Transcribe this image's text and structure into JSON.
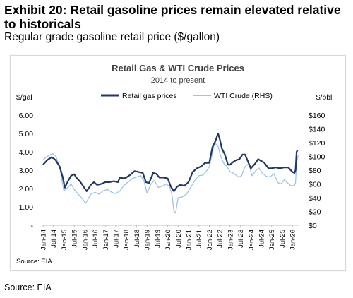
{
  "exhibit": {
    "title": "Exhibit 20: Retail gasoline prices remain elevated relative to historicals",
    "subtitle": "Regular grade gasoline retail price ($/gallon)",
    "source": "Source: EIA"
  },
  "chart_data": {
    "type": "line",
    "title": "Retail Gas & WTI Crude Prices",
    "subtitle": "2014 to present",
    "ylabel": "$/gal",
    "y2label": "$/bbl",
    "ylim": [
      0,
      6
    ],
    "y2lim": [
      0,
      160
    ],
    "yticks": [
      "-",
      "1.00",
      "2.00",
      "3.00",
      "4.00",
      "5.00",
      "6.00"
    ],
    "y2ticks": [
      "$0",
      "$20",
      "$40",
      "$60",
      "$80",
      "$100",
      "$120",
      "$140",
      "$160"
    ],
    "xticks": [
      "Jan-14",
      "Jul-14",
      "Jan-15",
      "Jul-15",
      "Jan-16",
      "Jul-16",
      "Jan-17",
      "Jul-17",
      "Jan-18",
      "Jul-18",
      "Jan-19",
      "Jul-19",
      "Jan-20",
      "Jul-20",
      "Jan-21",
      "Jul-21",
      "Jan-22",
      "Jul-22",
      "Jan-23",
      "Jul-23",
      "Jan-24",
      "Jul-24",
      "Jan-25",
      "Jul-25",
      "Jan-26"
    ],
    "xlim": [
      2014.0,
      2026.3
    ],
    "grid": false,
    "legend": "top-center",
    "source": "Source: EIA",
    "series": [
      {
        "name": "Retail gas prices",
        "axis": "left",
        "color": "#1f3864",
        "x": [
          2014.0,
          2014.2,
          2014.4,
          2014.5,
          2014.6,
          2014.8,
          2014.95,
          2015.05,
          2015.2,
          2015.35,
          2015.5,
          2015.6,
          2015.8,
          2015.95,
          2016.1,
          2016.3,
          2016.45,
          2016.6,
          2016.8,
          2017.0,
          2017.2,
          2017.4,
          2017.6,
          2017.7,
          2017.9,
          2018.0,
          2018.2,
          2018.4,
          2018.6,
          2018.8,
          2018.95,
          2019.1,
          2019.3,
          2019.45,
          2019.6,
          2019.8,
          2020.0,
          2020.15,
          2020.3,
          2020.45,
          2020.6,
          2020.8,
          2021.0,
          2021.2,
          2021.4,
          2021.6,
          2021.8,
          2022.0,
          2022.15,
          2022.3,
          2022.42,
          2022.5,
          2022.6,
          2022.75,
          2022.9,
          2023.0,
          2023.15,
          2023.3,
          2023.45,
          2023.6,
          2023.72,
          2023.85,
          2024.0,
          2024.2,
          2024.35,
          2024.5,
          2024.65,
          2024.85,
          2025.0,
          2025.2,
          2025.4,
          2025.6,
          2025.8,
          2026.0,
          2026.1,
          2026.15,
          2026.2,
          2026.25
        ],
        "values": [
          3.3,
          3.55,
          3.7,
          3.65,
          3.55,
          3.2,
          2.6,
          2.05,
          2.4,
          2.7,
          2.78,
          2.6,
          2.35,
          2.1,
          1.85,
          2.2,
          2.35,
          2.2,
          2.25,
          2.35,
          2.35,
          2.4,
          2.35,
          2.6,
          2.55,
          2.6,
          2.75,
          2.95,
          2.9,
          2.85,
          2.35,
          2.3,
          2.85,
          2.8,
          2.6,
          2.6,
          2.55,
          2.1,
          1.85,
          2.1,
          2.2,
          2.15,
          2.35,
          2.9,
          3.1,
          3.2,
          3.4,
          3.4,
          4.25,
          4.6,
          5.0,
          4.7,
          4.2,
          3.85,
          3.3,
          3.3,
          3.45,
          3.55,
          3.6,
          3.85,
          3.85,
          3.5,
          3.1,
          3.35,
          3.6,
          3.5,
          3.4,
          3.1,
          3.1,
          3.15,
          3.1,
          3.15,
          3.15,
          2.9,
          2.85,
          3.0,
          4.0,
          4.1
        ]
      },
      {
        "name": "WTI Crude (RHS)",
        "axis": "right",
        "color": "#9dc3e6",
        "x": [
          2014.0,
          2014.2,
          2014.45,
          2014.6,
          2014.8,
          2015.0,
          2015.2,
          2015.35,
          2015.5,
          2015.7,
          2015.9,
          2016.05,
          2016.3,
          2016.5,
          2016.7,
          2016.9,
          2017.1,
          2017.3,
          2017.5,
          2017.7,
          2017.9,
          2018.1,
          2018.3,
          2018.5,
          2018.7,
          2018.85,
          2019.0,
          2019.2,
          2019.35,
          2019.55,
          2019.75,
          2019.95,
          2020.1,
          2020.2,
          2020.3,
          2020.38,
          2020.5,
          2020.7,
          2020.9,
          2021.1,
          2021.3,
          2021.5,
          2021.7,
          2021.85,
          2022.0,
          2022.15,
          2022.25,
          2022.42,
          2022.55,
          2022.7,
          2022.85,
          2023.0,
          2023.2,
          2023.4,
          2023.55,
          2023.72,
          2023.9,
          2024.05,
          2024.25,
          2024.4,
          2024.55,
          2024.7,
          2024.85,
          2025.0,
          2025.1,
          2025.3,
          2025.45,
          2025.6,
          2025.75,
          2025.9,
          2026.0,
          2026.1,
          2026.15,
          2026.2,
          2026.28
        ],
        "values": [
          95,
          100,
          104,
          101,
          85,
          50,
          55,
          60,
          52,
          45,
          38,
          32,
          45,
          48,
          45,
          50,
          52,
          48,
          46,
          50,
          58,
          63,
          68,
          70,
          72,
          65,
          47,
          60,
          65,
          55,
          57,
          60,
          55,
          45,
          20,
          18,
          40,
          41,
          45,
          55,
          65,
          72,
          73,
          78,
          85,
          105,
          120,
          115,
          100,
          90,
          85,
          78,
          75,
          70,
          72,
          85,
          90,
          72,
          80,
          83,
          76,
          72,
          70,
          72,
          75,
          62,
          60,
          66,
          62,
          58,
          57,
          58,
          62,
          92,
          102
        ]
      }
    ]
  }
}
